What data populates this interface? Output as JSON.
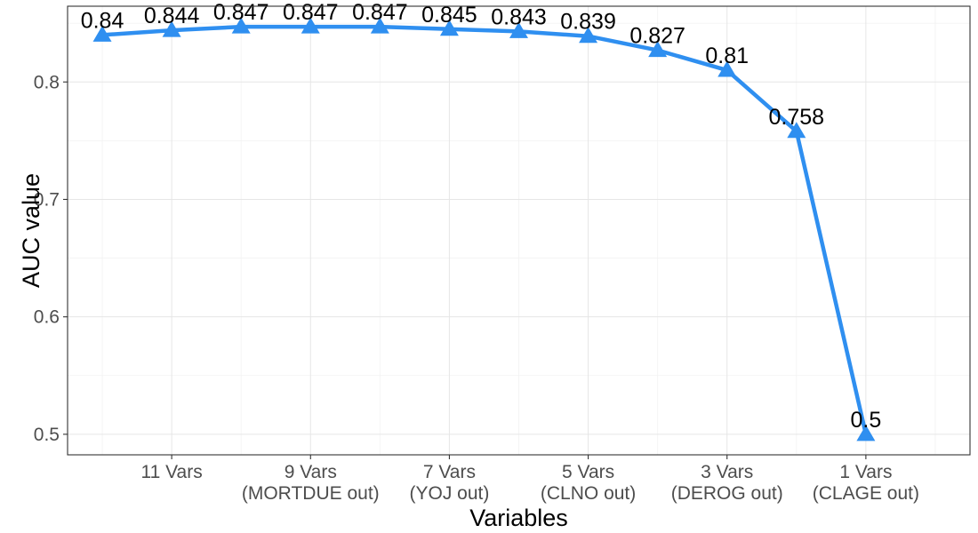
{
  "chart_data": {
    "type": "line",
    "x": [
      1,
      2,
      3,
      4,
      5,
      6,
      7,
      8,
      9,
      10,
      11,
      12
    ],
    "values": [
      0.84,
      0.844,
      0.847,
      0.847,
      0.847,
      0.845,
      0.843,
      0.839,
      0.827,
      0.81,
      0.758,
      0.5
    ],
    "data_labels": [
      "0.84",
      "0.844",
      "0.847",
      "0.847",
      "0.847",
      "0.845",
      "0.843",
      "0.839",
      "0.827",
      "0.81",
      "0.758",
      "0.5"
    ],
    "x_ticks": [
      {
        "x": 2,
        "lines": [
          "11 Vars"
        ]
      },
      {
        "x": 4,
        "lines": [
          "9 Vars",
          "(MORTDUE out)"
        ]
      },
      {
        "x": 6,
        "lines": [
          "7 Vars",
          "(YOJ out)"
        ]
      },
      {
        "x": 8,
        "lines": [
          "5 Vars",
          "(CLNO out)"
        ]
      },
      {
        "x": 10,
        "lines": [
          "3 Vars",
          "(DEROG out)"
        ]
      },
      {
        "x": 12,
        "lines": [
          "1 Vars",
          "(CLAGE out)"
        ]
      }
    ],
    "y_ticks": [
      {
        "value": 0.5,
        "label": "0.5"
      },
      {
        "value": 0.6,
        "label": "0.6"
      },
      {
        "value": 0.7,
        "label": "0.7"
      },
      {
        "value": 0.8,
        "label": "0.8"
      }
    ],
    "xlabel": "Variables",
    "ylabel": "AUC value",
    "xlim": [
      0.5,
      13.5
    ],
    "ylim": [
      0.4825,
      0.8645
    ],
    "grid": true,
    "line_color": "#2f8ff0",
    "marker": "triangle"
  }
}
